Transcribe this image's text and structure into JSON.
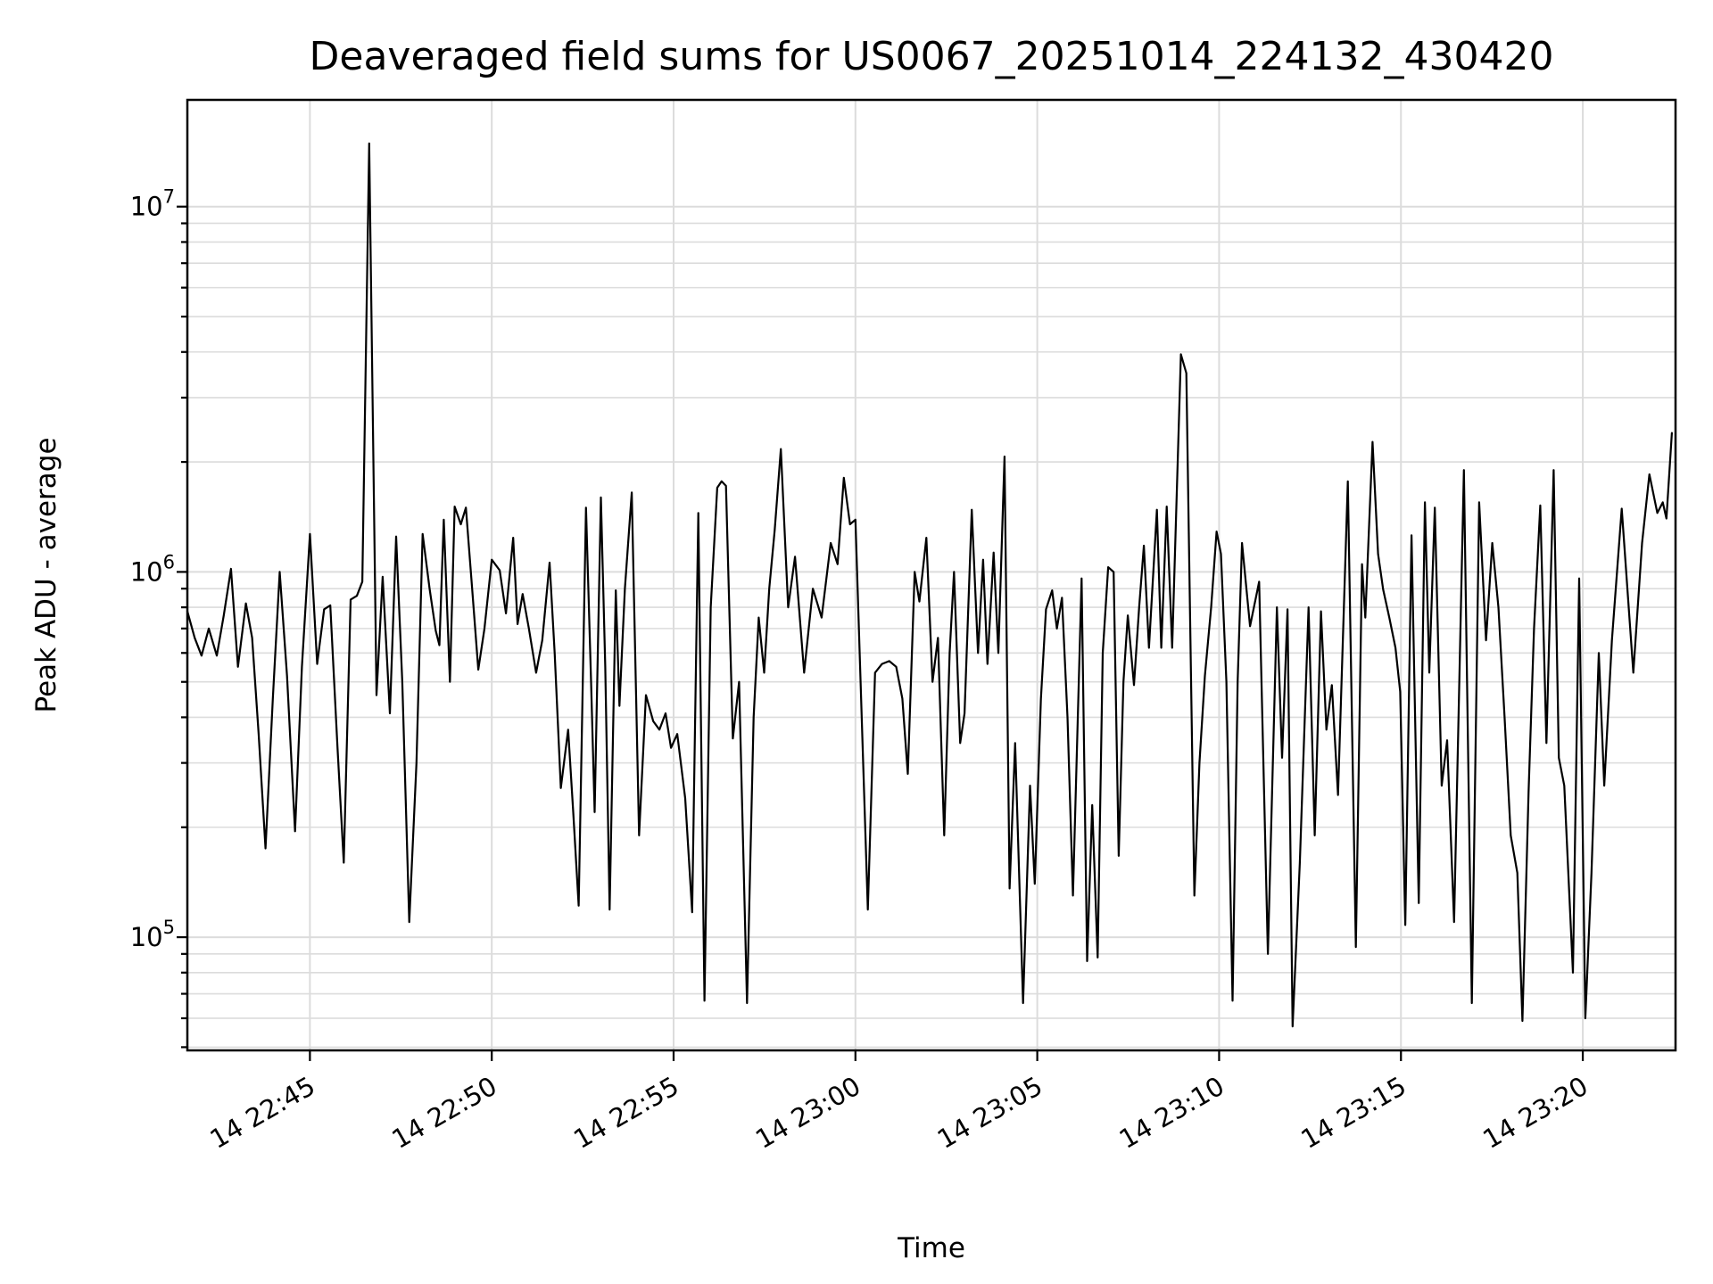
{
  "figure": {
    "title": "Deaveraged field sums for US0067_20251014_224132_430420",
    "background_color": "#ffffff",
    "line_color": "#000000",
    "grid_color": "#dcdcdc",
    "spine_color": "#000000"
  },
  "chart_data": {
    "type": "line",
    "title": "Deaveraged field sums for US0067_20251014_224132_430420",
    "xlabel": "Time",
    "ylabel": "Peak ADU - average",
    "x_axis_note": "t = minutes after 14 22:40 (tick labels show day hour:minute)",
    "y_scale": "log",
    "grid": true,
    "legend": false,
    "xlim": [
      1.63,
      42.55
    ],
    "ylim": [
      49000.0,
      19600000.0
    ],
    "xticks": [
      {
        "t": 5,
        "label": "14 22:45"
      },
      {
        "t": 10,
        "label": "14 22:50"
      },
      {
        "t": 15,
        "label": "14 22:55"
      },
      {
        "t": 20,
        "label": "14 23:00"
      },
      {
        "t": 25,
        "label": "14 23:05"
      },
      {
        "t": 30,
        "label": "14 23:10"
      },
      {
        "t": 35,
        "label": "14 23:15"
      },
      {
        "t": 40,
        "label": "14 23:20"
      }
    ],
    "yticks": [
      {
        "v": 100000.0,
        "label": "10^5"
      },
      {
        "v": 1000000.0,
        "label": "10^6"
      },
      {
        "v": 10000000.0,
        "label": "10^7"
      }
    ],
    "series": [
      {
        "name": "deaveraged-field-sums",
        "color": "#000000",
        "points": [
          [
            1.63,
            780000.0
          ],
          [
            1.83,
            660000.0
          ],
          [
            2.02,
            590000.0
          ],
          [
            2.22,
            700000.0
          ],
          [
            2.44,
            590000.0
          ],
          [
            2.63,
            760000.0
          ],
          [
            2.83,
            1020000.0
          ],
          [
            3.02,
            550000.0
          ],
          [
            3.24,
            820000.0
          ],
          [
            3.41,
            660000.0
          ],
          [
            3.59,
            360000.0
          ],
          [
            3.78,
            175000.0
          ],
          [
            3.98,
            450000.0
          ],
          [
            4.17,
            1000000.0
          ],
          [
            4.37,
            520000.0
          ],
          [
            4.59,
            195000.0
          ],
          [
            4.78,
            550000.0
          ],
          [
            5.0,
            1270000.0
          ],
          [
            5.2,
            560000.0
          ],
          [
            5.39,
            790000.0
          ],
          [
            5.56,
            810000.0
          ],
          [
            5.76,
            330000.0
          ],
          [
            5.93,
            160000.0
          ],
          [
            6.12,
            840000.0
          ],
          [
            6.29,
            860000.0
          ],
          [
            6.44,
            940000.0
          ],
          [
            6.63,
            14900000.0
          ],
          [
            6.83,
            460000.0
          ],
          [
            7.0,
            970000.0
          ],
          [
            7.2,
            410000.0
          ],
          [
            7.37,
            1250000.0
          ],
          [
            7.54,
            500000.0
          ],
          [
            7.73,
            110000.0
          ],
          [
            7.93,
            300000.0
          ],
          [
            8.1,
            1270000.0
          ],
          [
            8.29,
            900000.0
          ],
          [
            8.46,
            690000.0
          ],
          [
            8.56,
            630000.0
          ],
          [
            8.68,
            1390000.0
          ],
          [
            8.85,
            500000.0
          ],
          [
            8.98,
            1510000.0
          ],
          [
            9.15,
            1350000.0
          ],
          [
            9.29,
            1500000.0
          ],
          [
            9.46,
            900000.0
          ],
          [
            9.63,
            540000.0
          ],
          [
            9.8,
            700000.0
          ],
          [
            10.0,
            1080000.0
          ],
          [
            10.22,
            1010000.0
          ],
          [
            10.39,
            770000.0
          ],
          [
            10.59,
            1240000.0
          ],
          [
            10.71,
            720000.0
          ],
          [
            10.85,
            870000.0
          ],
          [
            11.02,
            700000.0
          ],
          [
            11.22,
            530000.0
          ],
          [
            11.39,
            650000.0
          ],
          [
            11.59,
            1060000.0
          ],
          [
            11.73,
            600000.0
          ],
          [
            11.9,
            256000.0
          ],
          [
            12.1,
            370000.0
          ],
          [
            12.24,
            220000.0
          ],
          [
            12.39,
            122000.0
          ],
          [
            12.59,
            1500000.0
          ],
          [
            12.73,
            500000.0
          ],
          [
            12.83,
            220000.0
          ],
          [
            13.0,
            1600000.0
          ],
          [
            13.12,
            550000.0
          ],
          [
            13.24,
            119000.0
          ],
          [
            13.41,
            890000.0
          ],
          [
            13.51,
            430000.0
          ],
          [
            13.66,
            900000.0
          ],
          [
            13.85,
            1650000.0
          ],
          [
            14.05,
            190000.0
          ],
          [
            14.24,
            460000.0
          ],
          [
            14.44,
            390000.0
          ],
          [
            14.61,
            370000.0
          ],
          [
            14.78,
            410000.0
          ],
          [
            14.93,
            330000.0
          ],
          [
            15.1,
            360000.0
          ],
          [
            15.32,
            240000.0
          ],
          [
            15.51,
            117000.0
          ],
          [
            15.68,
            1450000.0
          ],
          [
            15.85,
            67000.0
          ],
          [
            16.02,
            800000.0
          ],
          [
            16.2,
            1700000.0
          ],
          [
            16.32,
            1770000.0
          ],
          [
            16.44,
            1720000.0
          ],
          [
            16.63,
            350000.0
          ],
          [
            16.8,
            500000.0
          ],
          [
            17.02,
            66000.0
          ],
          [
            17.2,
            400000.0
          ],
          [
            17.34,
            750000.0
          ],
          [
            17.49,
            530000.0
          ],
          [
            17.63,
            900000.0
          ],
          [
            17.78,
            1300000.0
          ],
          [
            17.95,
            2170000.0
          ],
          [
            18.15,
            800000.0
          ],
          [
            18.34,
            1100000.0
          ],
          [
            18.59,
            530000.0
          ],
          [
            18.83,
            900000.0
          ],
          [
            19.07,
            750000.0
          ],
          [
            19.32,
            1200000.0
          ],
          [
            19.51,
            1050000.0
          ],
          [
            19.68,
            1810000.0
          ],
          [
            19.85,
            1350000.0
          ],
          [
            20.0,
            1390000.0
          ],
          [
            20.34,
            119000.0
          ],
          [
            20.54,
            530000.0
          ],
          [
            20.73,
            560000.0
          ],
          [
            20.93,
            570000.0
          ],
          [
            21.12,
            550000.0
          ],
          [
            21.29,
            450000.0
          ],
          [
            21.44,
            280000.0
          ],
          [
            21.63,
            1000000.0
          ],
          [
            21.76,
            830000.0
          ],
          [
            21.95,
            1240000.0
          ],
          [
            22.12,
            500000.0
          ],
          [
            22.27,
            660000.0
          ],
          [
            22.44,
            190000.0
          ],
          [
            22.59,
            600000.0
          ],
          [
            22.71,
            1000000.0
          ],
          [
            22.88,
            340000.0
          ],
          [
            23.0,
            410000.0
          ],
          [
            23.2,
            1480000.0
          ],
          [
            23.37,
            600000.0
          ],
          [
            23.51,
            1080000.0
          ],
          [
            23.63,
            560000.0
          ],
          [
            23.8,
            1130000.0
          ],
          [
            23.93,
            600000.0
          ],
          [
            24.1,
            2070000.0
          ],
          [
            24.24,
            136000.0
          ],
          [
            24.39,
            340000.0
          ],
          [
            24.61,
            66000.0
          ],
          [
            24.8,
            260000.0
          ],
          [
            24.93,
            140000.0
          ],
          [
            25.1,
            450000.0
          ],
          [
            25.24,
            790000.0
          ],
          [
            25.41,
            890000.0
          ],
          [
            25.54,
            700000.0
          ],
          [
            25.68,
            850000.0
          ],
          [
            25.83,
            400000.0
          ],
          [
            25.98,
            130000.0
          ],
          [
            26.22,
            960000.0
          ],
          [
            26.37,
            86000.0
          ],
          [
            26.51,
            230000.0
          ],
          [
            26.66,
            88000.0
          ],
          [
            26.8,
            600000.0
          ],
          [
            26.95,
            1030000.0
          ],
          [
            27.1,
            1000000.0
          ],
          [
            27.24,
            167000.0
          ],
          [
            27.37,
            500000.0
          ],
          [
            27.49,
            760000.0
          ],
          [
            27.66,
            490000.0
          ],
          [
            27.8,
            800000.0
          ],
          [
            27.93,
            1180000.0
          ],
          [
            28.07,
            620000.0
          ],
          [
            28.29,
            1480000.0
          ],
          [
            28.41,
            620000.0
          ],
          [
            28.56,
            1510000.0
          ],
          [
            28.71,
            620000.0
          ],
          [
            28.95,
            3940000.0
          ],
          [
            29.1,
            3500000.0
          ],
          [
            29.32,
            130000.0
          ],
          [
            29.46,
            300000.0
          ],
          [
            29.61,
            520000.0
          ],
          [
            29.78,
            800000.0
          ],
          [
            29.93,
            1290000.0
          ],
          [
            30.05,
            1120000.0
          ],
          [
            30.2,
            500000.0
          ],
          [
            30.37,
            67000.0
          ],
          [
            30.51,
            500000.0
          ],
          [
            30.63,
            1200000.0
          ],
          [
            30.85,
            710000.0
          ],
          [
            31.1,
            940000.0
          ],
          [
            31.34,
            90000.0
          ],
          [
            31.59,
            800000.0
          ],
          [
            31.73,
            310000.0
          ],
          [
            31.88,
            790000.0
          ],
          [
            32.02,
            57000.0
          ],
          [
            32.22,
            160000.0
          ],
          [
            32.46,
            800000.0
          ],
          [
            32.63,
            190000.0
          ],
          [
            32.8,
            780000.0
          ],
          [
            32.95,
            370000.0
          ],
          [
            33.1,
            490000.0
          ],
          [
            33.27,
            245000.0
          ],
          [
            33.54,
            1770000.0
          ],
          [
            33.76,
            94000.0
          ],
          [
            33.93,
            1050000.0
          ],
          [
            34.02,
            750000.0
          ],
          [
            34.22,
            2270000.0
          ],
          [
            34.37,
            1120000.0
          ],
          [
            34.51,
            895000.0
          ],
          [
            34.68,
            750000.0
          ],
          [
            34.85,
            620000.0
          ],
          [
            34.98,
            470000.0
          ],
          [
            35.12,
            108000.0
          ],
          [
            35.29,
            1260000.0
          ],
          [
            35.49,
            124000.0
          ],
          [
            35.66,
            1550000.0
          ],
          [
            35.78,
            530000.0
          ],
          [
            35.93,
            1500000.0
          ],
          [
            36.12,
            260000.0
          ],
          [
            36.27,
            346000.0
          ],
          [
            36.46,
            110000.0
          ],
          [
            36.73,
            1900000.0
          ],
          [
            36.95,
            66000.0
          ],
          [
            37.15,
            1550000.0
          ],
          [
            37.34,
            650000.0
          ],
          [
            37.51,
            1200000.0
          ],
          [
            37.68,
            800000.0
          ],
          [
            37.85,
            400000.0
          ],
          [
            38.02,
            190000.0
          ],
          [
            38.2,
            150000.0
          ],
          [
            38.34,
            59000.0
          ],
          [
            38.51,
            250000.0
          ],
          [
            38.66,
            700000.0
          ],
          [
            38.83,
            1520000.0
          ],
          [
            39.0,
            340000.0
          ],
          [
            39.2,
            1900000.0
          ],
          [
            39.34,
            310000.0
          ],
          [
            39.49,
            260000.0
          ],
          [
            39.73,
            80000.0
          ],
          [
            39.9,
            960000.0
          ],
          [
            40.07,
            60000.0
          ],
          [
            40.24,
            150000.0
          ],
          [
            40.44,
            600000.0
          ],
          [
            40.59,
            260000.0
          ],
          [
            40.8,
            650000.0
          ],
          [
            41.07,
            1490000.0
          ],
          [
            41.39,
            530000.0
          ],
          [
            41.63,
            1200000.0
          ],
          [
            41.83,
            1850000.0
          ],
          [
            42.05,
            1450000.0
          ],
          [
            42.2,
            1550000.0
          ],
          [
            42.3,
            1400000.0
          ],
          [
            42.45,
            2400000.0
          ]
        ]
      }
    ]
  }
}
